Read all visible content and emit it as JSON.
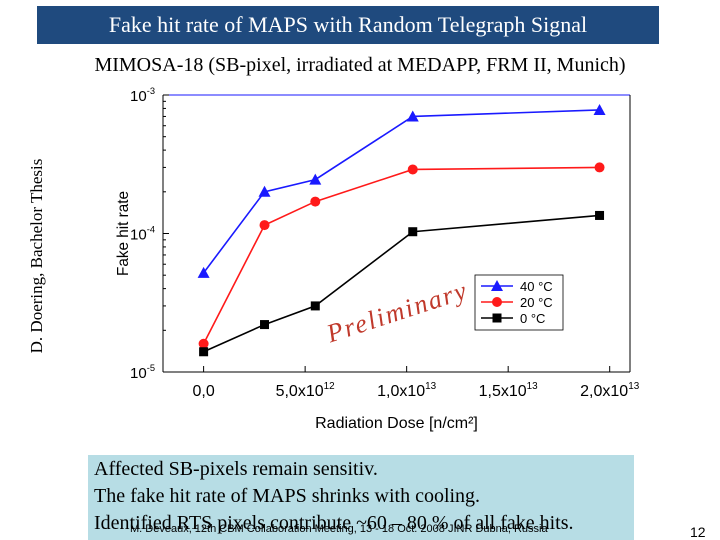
{
  "slide": {
    "title": "Fake hit rate of MAPS with Random Telegraph Signal",
    "subtitle": "MIMOSA-18 (SB-pixel, irradiated at MEDAPP, FRM II, Munich)",
    "side_label": "D. Doering, Bachelor Thesis",
    "summary": [
      "Affected SB-pixels remain sensitiv.",
      "The fake hit rate of MAPS shrinks with cooling.",
      "Identified RTS pixels contribute ~60 – 80 % of all fake hits."
    ],
    "footer": "M. Deveaux, 12th CBM Collaboration Meeting, 13 - 18 Oct. 2008 JINR Dubna, Russia",
    "page_number": "12"
  },
  "chart_data": {
    "type": "line",
    "xlabel": "Radiation Dose [n/cm²]",
    "ylabel": "Fake hit rate",
    "x_tick_labels": [
      {
        "x": 0,
        "mant": "0,0",
        "exp": ""
      },
      {
        "x": 5000000000000.0,
        "mant": "5,0x10",
        "exp": "12"
      },
      {
        "x": 10000000000000.0,
        "mant": "1,0x10",
        "exp": "13"
      },
      {
        "x": 15000000000000.0,
        "mant": "1,5x10",
        "exp": "13"
      },
      {
        "x": 20000000000000.0,
        "mant": "2,0x10",
        "exp": "13"
      }
    ],
    "y_tick_labels": [
      {
        "y": 0.001,
        "mant": "10",
        "exp": "-3"
      },
      {
        "y": 0.0001,
        "mant": "10",
        "exp": "-4"
      },
      {
        "y": 1e-05,
        "mant": "10",
        "exp": "-5"
      }
    ],
    "xlim": [
      -2000000000000.0,
      21000000000000.0
    ],
    "ylim": [
      1e-05,
      0.001
    ],
    "y_scale": "log",
    "watermark": "Preliminary",
    "legend_position": "bottom-right",
    "series": [
      {
        "name": "40 °C",
        "color": "#1a1aff",
        "marker": "triangle",
        "x": [
          0,
          3000000000000.0,
          5500000000000.0,
          10300000000000.0,
          19500000000000.0
        ],
        "y": [
          5.2e-05,
          0.0002,
          0.000245,
          0.0007,
          0.00078
        ]
      },
      {
        "name": "20 °C",
        "color": "#ff1a1a",
        "marker": "circle",
        "x": [
          0,
          3000000000000.0,
          5500000000000.0,
          10300000000000.0,
          19500000000000.0
        ],
        "y": [
          1.6e-05,
          0.000115,
          0.00017,
          0.00029,
          0.0003
        ]
      },
      {
        "name": "0 °C",
        "color": "#000000",
        "marker": "square",
        "x": [
          0,
          3000000000000.0,
          5500000000000.0,
          10300000000000.0,
          19500000000000.0
        ],
        "y": [
          1.4e-05,
          2.2e-05,
          3e-05,
          0.000103,
          0.000135
        ]
      }
    ]
  }
}
